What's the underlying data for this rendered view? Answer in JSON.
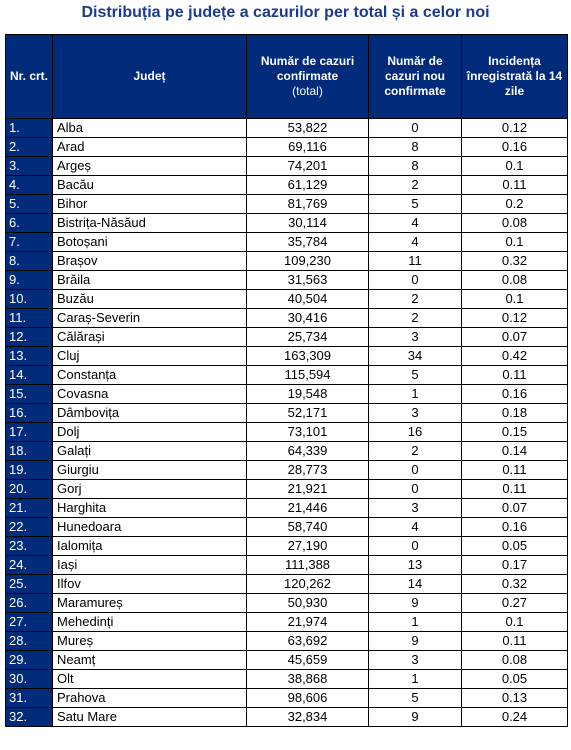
{
  "title": "Distribuția pe județe a cazurilor per total și a celor noi",
  "table": {
    "headers": {
      "nr": "Nr. crt.",
      "judet": "Județ",
      "total_main": "Număr de cazuri confirmate",
      "total_sub": "(total)",
      "noi": "Număr de cazuri nou confirmate",
      "incidenta": "Incidența înregistrată la 14 zile"
    },
    "rows": [
      {
        "nr": "1.",
        "judet": "Alba",
        "total": "53,822",
        "noi": "0",
        "incidenta": "0.12"
      },
      {
        "nr": "2.",
        "judet": "Arad",
        "total": "69,116",
        "noi": "8",
        "incidenta": "0.16"
      },
      {
        "nr": "3.",
        "judet": "Argeș",
        "total": "74,201",
        "noi": "8",
        "incidenta": "0.1"
      },
      {
        "nr": "4.",
        "judet": "Bacău",
        "total": "61,129",
        "noi": "2",
        "incidenta": "0.11"
      },
      {
        "nr": "5.",
        "judet": "Bihor",
        "total": "81,769",
        "noi": "5",
        "incidenta": "0.2"
      },
      {
        "nr": "6.",
        "judet": "Bistrița-Năsăud",
        "total": "30,114",
        "noi": "4",
        "incidenta": "0.08"
      },
      {
        "nr": "7.",
        "judet": "Botoșani",
        "total": "35,784",
        "noi": "4",
        "incidenta": "0.1"
      },
      {
        "nr": "8.",
        "judet": "Brașov",
        "total": "109,230",
        "noi": "11",
        "incidenta": "0.32"
      },
      {
        "nr": "9.",
        "judet": "Brăila",
        "total": "31,563",
        "noi": "0",
        "incidenta": "0.08"
      },
      {
        "nr": "10.",
        "judet": "Buzău",
        "total": "40,504",
        "noi": "2",
        "incidenta": "0.1"
      },
      {
        "nr": "11.",
        "judet": "Caraș-Severin",
        "total": "30,416",
        "noi": "2",
        "incidenta": "0.12"
      },
      {
        "nr": "12.",
        "judet": "Călărași",
        "total": "25,734",
        "noi": "3",
        "incidenta": "0.07"
      },
      {
        "nr": "13.",
        "judet": "Cluj",
        "total": "163,309",
        "noi": "34",
        "incidenta": "0.42"
      },
      {
        "nr": "14.",
        "judet": "Constanța",
        "total": "115,594",
        "noi": "5",
        "incidenta": "0.11"
      },
      {
        "nr": "15.",
        "judet": "Covasna",
        "total": "19,548",
        "noi": "1",
        "incidenta": "0.16"
      },
      {
        "nr": "16.",
        "judet": "Dâmbovița",
        "total": "52,171",
        "noi": "3",
        "incidenta": "0.18"
      },
      {
        "nr": "17.",
        "judet": "Dolj",
        "total": "73,101",
        "noi": "16",
        "incidenta": "0.15"
      },
      {
        "nr": "18.",
        "judet": "Galați",
        "total": "64,339",
        "noi": "2",
        "incidenta": "0.14"
      },
      {
        "nr": "19.",
        "judet": "Giurgiu",
        "total": "28,773",
        "noi": "0",
        "incidenta": "0.11"
      },
      {
        "nr": "20.",
        "judet": "Gorj",
        "total": "21,921",
        "noi": "0",
        "incidenta": "0.11"
      },
      {
        "nr": "21.",
        "judet": "Harghita",
        "total": "21,446",
        "noi": "3",
        "incidenta": "0.07"
      },
      {
        "nr": "22.",
        "judet": "Hunedoara",
        "total": "58,740",
        "noi": "4",
        "incidenta": "0.16"
      },
      {
        "nr": "23.",
        "judet": "Ialomița",
        "total": "27,190",
        "noi": "0",
        "incidenta": "0.05"
      },
      {
        "nr": "24.",
        "judet": "Iași",
        "total": "111,388",
        "noi": "13",
        "incidenta": "0.17"
      },
      {
        "nr": "25.",
        "judet": "Ilfov",
        "total": "120,262",
        "noi": "14",
        "incidenta": "0.32"
      },
      {
        "nr": "26.",
        "judet": "Maramureș",
        "total": "50,930",
        "noi": "9",
        "incidenta": "0.27"
      },
      {
        "nr": "27.",
        "judet": "Mehedinți",
        "total": "21,974",
        "noi": "1",
        "incidenta": "0.1"
      },
      {
        "nr": "28.",
        "judet": "Mureș",
        "total": "63,692",
        "noi": "9",
        "incidenta": "0.11"
      },
      {
        "nr": "29.",
        "judet": "Neamț",
        "total": "45,659",
        "noi": "3",
        "incidenta": "0.08"
      },
      {
        "nr": "30.",
        "judet": "Olt",
        "total": "38,868",
        "noi": "1",
        "incidenta": "0.05"
      },
      {
        "nr": "31.",
        "judet": "Prahova",
        "total": "98,606",
        "noi": "5",
        "incidenta": "0.13"
      },
      {
        "nr": "32.",
        "judet": "Satu Mare",
        "total": "32,834",
        "noi": "9",
        "incidenta": "0.24"
      }
    ]
  }
}
